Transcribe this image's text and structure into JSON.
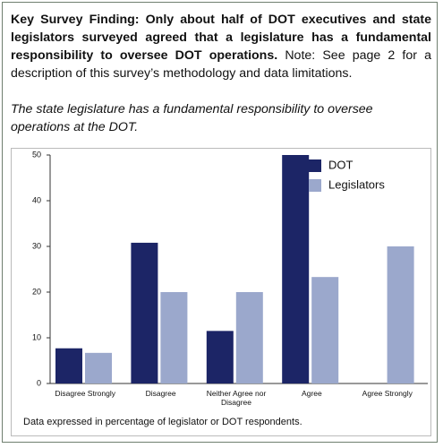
{
  "chart_data": {
    "type": "bar",
    "title": "Key Survey Finding: Only about half of DOT executives and state legislators surveyed agreed that a legislature has a fundamental responsibility to oversee DOT operations.",
    "note": "Note: See page 2 for a description of this survey’s methodology and data limitations.",
    "subtitle": "The state legislature has a fundamental responsibility to oversee operations at the DOT.",
    "footnote": "Data expressed in percentage of legislator or DOT respondents.",
    "categories": [
      "Disagree Strongly",
      "Disagree",
      "Neither Agree nor Disagree",
      "Agree",
      "Agree Strongly"
    ],
    "series": [
      {
        "name": "DOT",
        "color": "#1c2566",
        "values": [
          7.7,
          30.8,
          11.5,
          50,
          0
        ]
      },
      {
        "name": "Legislators",
        "color": "#9ba8cc",
        "values": [
          6.7,
          20,
          20,
          23.3,
          30
        ]
      }
    ],
    "ylim": [
      0,
      50
    ],
    "yticks": [
      0,
      10,
      20,
      30,
      40,
      50
    ],
    "legend": "top-right"
  }
}
